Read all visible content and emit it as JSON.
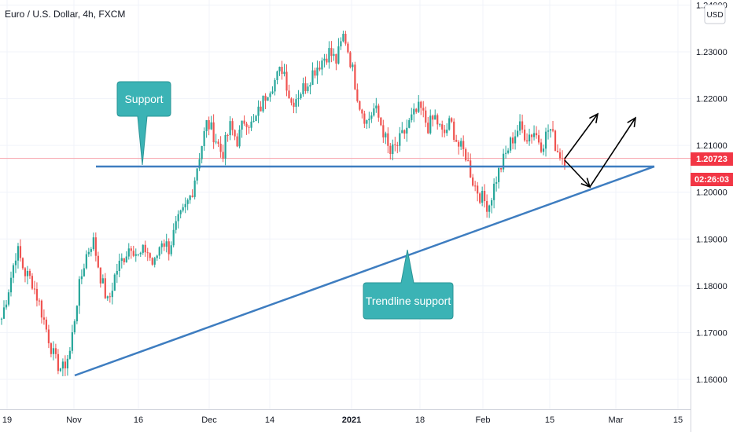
{
  "chart_data": {
    "type": "candlestick",
    "title": "Euro / U.S. Dollar, 4h, FXCM",
    "currency": "USD",
    "x_tick_labels": [
      "19",
      "Nov",
      "16",
      "Dec",
      "14",
      "2021",
      "18",
      "Feb",
      "15",
      "Mar",
      "15"
    ],
    "y_tick_labels": [
      "1.16000",
      "1.17000",
      "1.18000",
      "1.19000",
      "1.20000",
      "1.21000",
      "1.22000",
      "1.23000",
      "1.24000"
    ],
    "ylim": [
      1.155,
      1.24
    ],
    "last_price": "1.20723",
    "countdown": "02:26:03",
    "price_path": [
      1.173,
      1.18,
      1.188,
      1.183,
      1.181,
      1.176,
      1.17,
      1.164,
      1.162,
      1.166,
      1.178,
      1.186,
      1.19,
      1.182,
      1.176,
      1.183,
      1.186,
      1.189,
      1.186,
      1.188,
      1.184,
      1.19,
      1.188,
      1.193,
      1.196,
      1.2,
      1.208,
      1.215,
      1.212,
      1.208,
      1.214,
      1.211,
      1.216,
      1.214,
      1.218,
      1.222,
      1.224,
      1.227,
      1.219,
      1.221,
      1.223,
      1.226,
      1.228,
      1.23,
      1.228,
      1.234,
      1.227,
      1.219,
      1.215,
      1.218,
      1.214,
      1.208,
      1.21,
      1.213,
      1.216,
      1.218,
      1.214,
      1.216,
      1.212,
      1.215,
      1.21,
      1.208,
      1.202,
      1.199,
      1.197,
      1.203,
      1.207,
      1.211,
      1.214,
      1.212,
      1.213,
      1.21,
      1.214,
      1.209,
      1.207
    ],
    "support_level": 1.2055,
    "annotations": {
      "support_label": "Support",
      "trendline_label": "Trendline support"
    }
  }
}
